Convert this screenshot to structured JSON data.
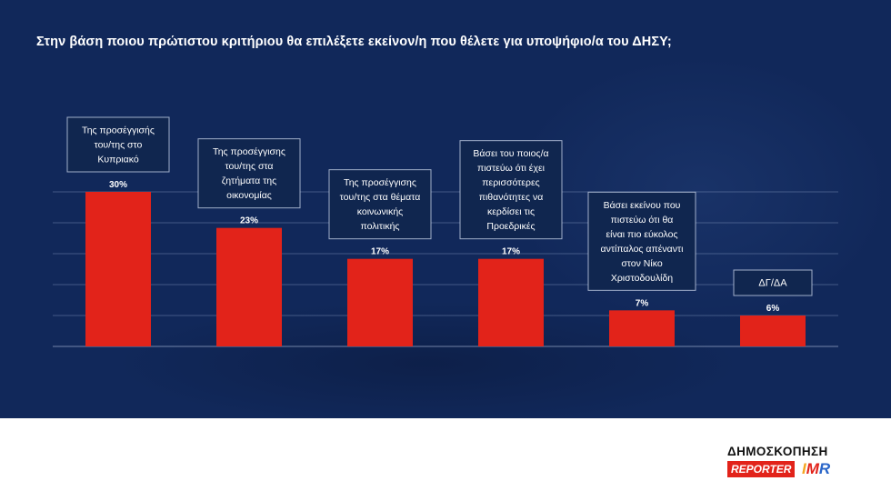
{
  "title": "Στην βάση ποιου πρώτιστου κριτήριου θα επιλέξετε εκείνον/η που θέλετε για υποψήφιο/α του ΔΗΣΥ;",
  "colors": {
    "background": "#11285a",
    "bar": "#e2231a",
    "label_box": "#10264f",
    "text": "#ffffff"
  },
  "chart_data": {
    "type": "bar",
    "title": "Στην βάση ποιου πρώτιστου κριτήριου θα επιλέξετε εκείνον/η που θέλετε για υποψήφιο/α του ΔΗΣΥ;",
    "categories": [
      [
        "Της προσέγγισής",
        "του/της στο",
        "Κυπριακό"
      ],
      [
        "Της προσέγγισης",
        "του/της στα",
        "ζητήματα της",
        "οικονομίας"
      ],
      [
        "Της προσέγγισης",
        "του/της στα θέματα",
        "κοινωνικής",
        "πολιτικής"
      ],
      [
        "Βάσει του ποιος/α",
        "πιστεύω ότι έχει",
        "περισσότερες",
        "πιθανότητες να",
        "κερδίσει τις",
        "Προεδρικές"
      ],
      [
        "Βάσει εκείνου που",
        "πιστεύω ότι θα",
        "είναι πιο εύκολος",
        "αντίπαλος απέναντι",
        "στον Νίκο",
        "Χριστοδουλίδη"
      ],
      [
        "ΔΓ/ΔΑ"
      ]
    ],
    "values": [
      30,
      23,
      17,
      17,
      7,
      6
    ],
    "value_labels": [
      "30%",
      "23%",
      "17%",
      "17%",
      "7%",
      "6%"
    ],
    "unit": "%",
    "ylim": [
      0,
      30
    ],
    "grid": true,
    "legend": "none"
  },
  "footer": {
    "logo_title": "ΔΗΜΟΣΚΟΠΗΣΗ",
    "logo_reporter": "REPORTER",
    "logo_imr_i": "I",
    "logo_imr_m": "M",
    "logo_imr_r": "R"
  }
}
